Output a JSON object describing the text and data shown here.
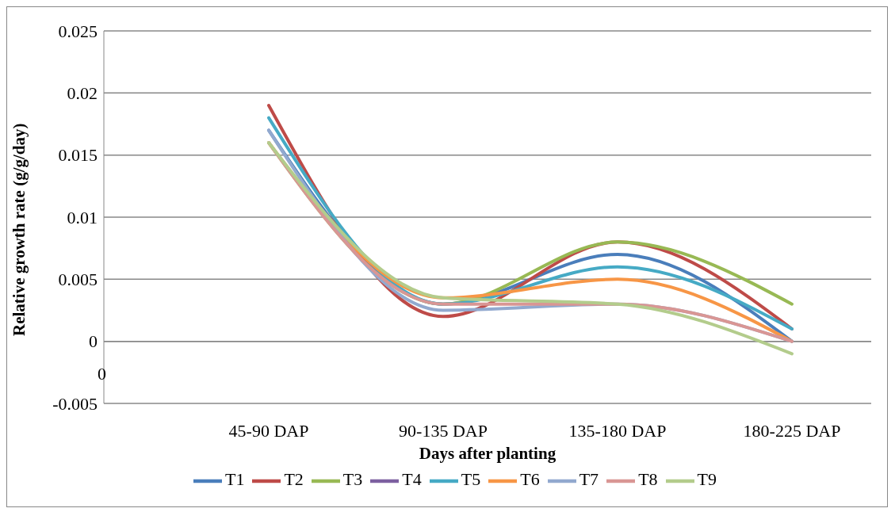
{
  "chart_data": {
    "type": "line",
    "xlabel": "Days after planting",
    "ylabel": "Relative growth rate (g/g/day)",
    "categories": [
      "45-90 DAP",
      "90-135 DAP",
      "135-180 DAP",
      "180-225 DAP"
    ],
    "series": [
      {
        "name": "T1",
        "color": "#4a7ebb",
        "values": [
          0.017,
          0.003,
          0.007,
          0.0
        ]
      },
      {
        "name": "T2",
        "color": "#be4b48",
        "values": [
          0.019,
          0.002,
          0.008,
          0.001
        ]
      },
      {
        "name": "T3",
        "color": "#98b954",
        "values": [
          0.016,
          0.003,
          0.008,
          0.003
        ]
      },
      {
        "name": "T4",
        "color": "#7d60a0",
        "values": [
          null,
          null,
          null,
          null
        ]
      },
      {
        "name": "T5",
        "color": "#46aac5",
        "values": [
          0.018,
          0.003,
          0.006,
          0.001
        ]
      },
      {
        "name": "T6",
        "color": "#f79646",
        "values": [
          0.016,
          0.0035,
          0.005,
          0.0
        ]
      },
      {
        "name": "T7",
        "color": "#92a9cf",
        "values": [
          0.017,
          0.0025,
          0.003,
          0.0
        ]
      },
      {
        "name": "T8",
        "color": "#d99694",
        "values": [
          0.016,
          0.003,
          0.003,
          0.0
        ]
      },
      {
        "name": "T9",
        "color": "#b3cc8c",
        "values": [
          0.016,
          0.0035,
          0.003,
          -0.001
        ]
      }
    ],
    "ylim": [
      -0.005,
      0.025
    ],
    "yticks": [
      -0.005,
      0,
      0.005,
      0.01,
      0.015,
      0.02,
      0.025
    ],
    "grid": "y",
    "legend": "bottom",
    "marker": "none",
    "line_style": "solid",
    "annotations": [
      "0"
    ]
  }
}
